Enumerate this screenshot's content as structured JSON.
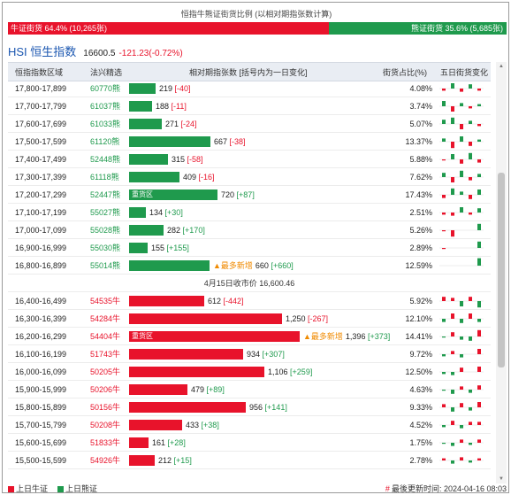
{
  "title": "恒指牛熊证街货比例 (以相对期指张数计算)",
  "ratio": {
    "bull_label": "牛证街货 64.4% (10,265张)",
    "bear_label": "熊证街货 35.6% (5,685张)",
    "bull_fraction": 0.644
  },
  "index": {
    "name": "HSI 恒生指数",
    "price": "16600.5",
    "change": "-121.23(-0.72%)"
  },
  "headers": {
    "range": "恒指指数区域",
    "code": "法兴精选",
    "volume": "相对期指张数 [括号内为一日变化]",
    "share": "街货占比(%)",
    "change5": "五日街货变化"
  },
  "bear_rows": [
    {
      "range": "17,800-17,899",
      "code": "60770熊",
      "value": 219,
      "value_text": "219",
      "change": "[-40]",
      "share": "4.08%",
      "spark": [
        -2,
        6,
        -3,
        4,
        -2
      ]
    },
    {
      "range": "17,700-17,799",
      "code": "61037熊",
      "value": 188,
      "value_text": "188",
      "change": "[-11]",
      "share": "3.74%",
      "spark": [
        5,
        -5,
        3,
        -2,
        2
      ]
    },
    {
      "range": "17,600-17,699",
      "code": "61033熊",
      "value": 271,
      "value_text": "271",
      "change": "[-24]",
      "share": "5.07%",
      "spark": [
        4,
        6,
        -5,
        3,
        -2
      ]
    },
    {
      "range": "17,500-17,599",
      "code": "61120熊",
      "value": 667,
      "value_text": "667",
      "change": "[-38]",
      "share": "13.37%",
      "spark": [
        3,
        -6,
        5,
        -4,
        2
      ]
    },
    {
      "range": "17,400-17,499",
      "code": "52448熊",
      "value": 315,
      "value_text": "315",
      "change": "[-58]",
      "share": "5.88%",
      "spark": [
        -1,
        5,
        -4,
        6,
        -3
      ]
    },
    {
      "range": "17,300-17,399",
      "code": "61118熊",
      "value": 409,
      "value_text": "409",
      "change": "[-16]",
      "share": "7.62%",
      "spark": [
        4,
        -5,
        6,
        -3,
        3
      ]
    },
    {
      "range": "17,200-17,299",
      "code": "52447熊",
      "value": 720,
      "value_text": "720",
      "change": "[+87]",
      "share": "17.43%",
      "spark": [
        -3,
        6,
        3,
        -4,
        5
      ],
      "tag": "重货区"
    },
    {
      "range": "17,100-17,199",
      "code": "55027熊",
      "value": 134,
      "value_text": "134",
      "change": "[+30]",
      "share": "2.51%",
      "spark": [
        -2,
        -3,
        5,
        -2,
        4
      ]
    },
    {
      "range": "17,000-17,099",
      "code": "55028熊",
      "value": 282,
      "value_text": "282",
      "change": "[+170]",
      "share": "5.26%",
      "spark": [
        -1,
        -6,
        0,
        0,
        6
      ]
    },
    {
      "range": "16,900-16,999",
      "code": "55030熊",
      "value": 155,
      "value_text": "155",
      "change": "[+155]",
      "share": "2.89%",
      "spark": [
        -1,
        0,
        0,
        0,
        6
      ]
    },
    {
      "range": "16,800-16,899",
      "code": "55014熊",
      "value": 660,
      "value_text": "660",
      "change": "[+660]",
      "share": "12.59%",
      "spark": [
        0,
        0,
        0,
        0,
        7
      ],
      "hot": "▲最多新增"
    }
  ],
  "closing_label": "4月15日收市价 16,600.46",
  "bull_rows": [
    {
      "range": "16,400-16,499",
      "code": "54535牛",
      "value": 612,
      "value_text": "612",
      "change": "[-442]",
      "share": "5.92%",
      "spark": [
        4,
        3,
        -5,
        4,
        -6
      ]
    },
    {
      "range": "16,300-16,399",
      "code": "54284牛",
      "value": 1250,
      "value_text": "1,250",
      "change": "[-267]",
      "share": "12.10%",
      "spark": [
        -3,
        5,
        -4,
        5,
        -3
      ]
    },
    {
      "range": "16,200-16,299",
      "code": "54404牛",
      "value": 1396,
      "value_text": "1,396",
      "change": "[+373]",
      "share": "14.41%",
      "spark": [
        -1,
        4,
        -3,
        -4,
        6
      ],
      "tag": "重货区",
      "hot": "▲最多新增"
    },
    {
      "range": "16,100-16,199",
      "code": "51743牛",
      "value": 934,
      "value_text": "934",
      "change": "[+307]",
      "share": "9.72%",
      "spark": [
        -2,
        3,
        -3,
        0,
        5
      ]
    },
    {
      "range": "16,000-16,099",
      "code": "50205牛",
      "value": 1106,
      "value_text": "1,106",
      "change": "[+259]",
      "share": "12.50%",
      "spark": [
        -2,
        -3,
        4,
        0,
        5
      ]
    },
    {
      "range": "15,900-15,999",
      "code": "50206牛",
      "value": 479,
      "value_text": "479",
      "change": "[+89]",
      "share": "4.63%",
      "spark": [
        -1,
        -4,
        3,
        -3,
        4
      ]
    },
    {
      "range": "15,800-15,899",
      "code": "50156牛",
      "value": 956,
      "value_text": "956",
      "change": "[+141]",
      "share": "9.33%",
      "spark": [
        3,
        -4,
        4,
        -3,
        5
      ]
    },
    {
      "range": "15,700-15,799",
      "code": "50208牛",
      "value": 433,
      "value_text": "433",
      "change": "[+38]",
      "share": "4.52%",
      "spark": [
        -2,
        4,
        -3,
        3,
        3
      ]
    },
    {
      "range": "15,600-15,699",
      "code": "51833牛",
      "value": 161,
      "value_text": "161",
      "change": "[+28]",
      "share": "1.75%",
      "spark": [
        -1,
        -3,
        3,
        -2,
        3
      ]
    },
    {
      "range": "15,500-15,599",
      "code": "54926牛",
      "value": 212,
      "value_text": "212",
      "change": "[+15]",
      "share": "2.78%",
      "spark": [
        2,
        -3,
        3,
        -2,
        2
      ]
    }
  ],
  "footer": {
    "bull_legend": "上日牛证",
    "bear_legend": "上日熊证",
    "update": "最後更新时间: 2024-04-16 08:03"
  },
  "colors": {
    "bull": "#e8132b",
    "bear": "#1f9a4d",
    "link": "#1a56b0",
    "hot": "#f08a00"
  }
}
